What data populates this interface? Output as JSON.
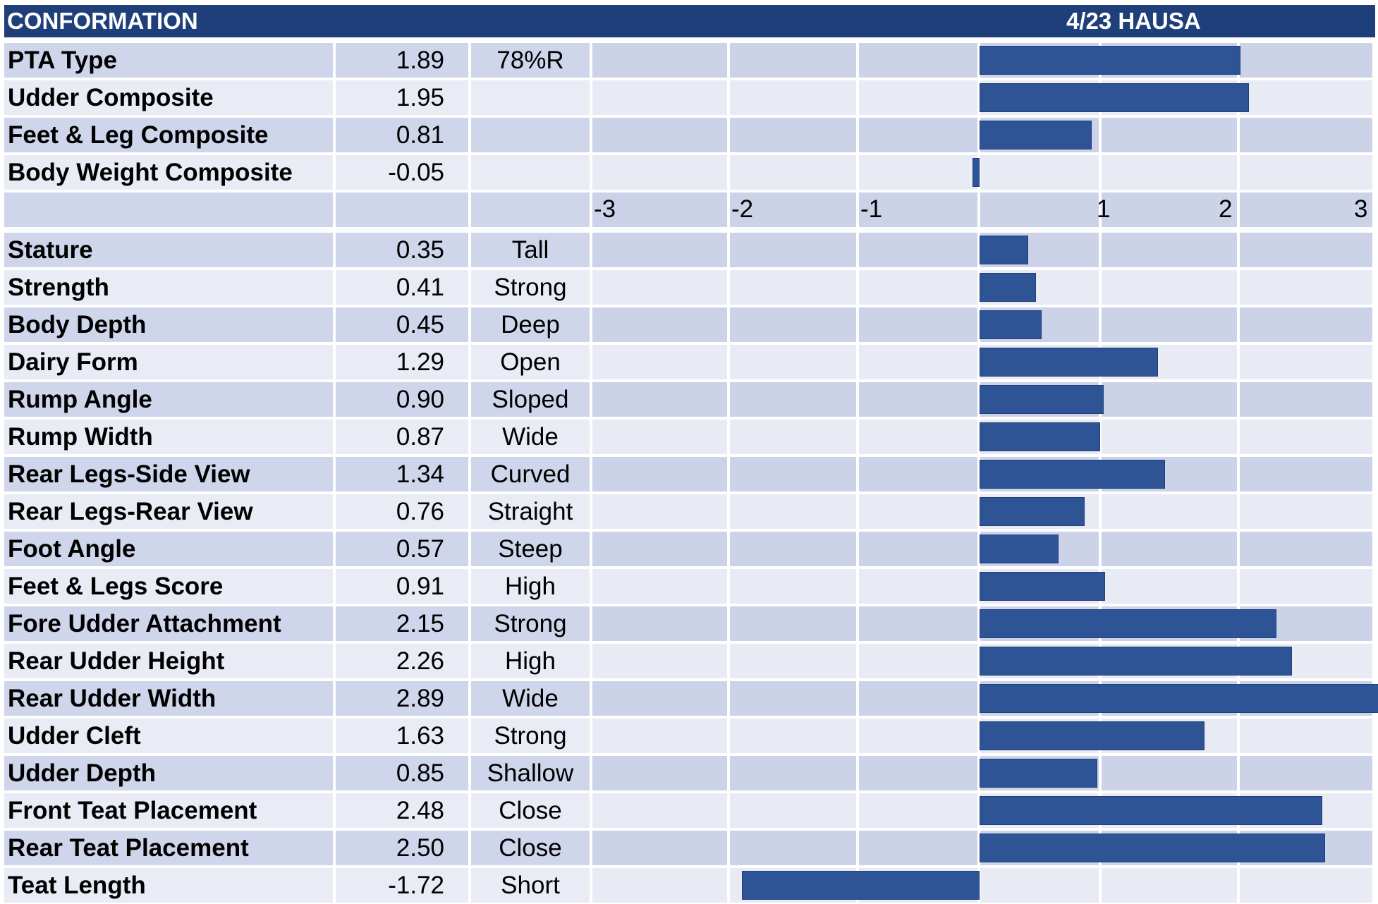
{
  "header": {
    "title": "CONFORMATION",
    "subtitle": "4/23 HAUSA"
  },
  "colors": {
    "header_bg": "#1f3f7a",
    "bar": "#2e5496",
    "row_dark": "#ccd3e8",
    "row_light": "#e8ebf4",
    "cell_light": "#e9ebf5",
    "cell_dark": "#cfd5ea"
  },
  "chart_data": {
    "type": "bar",
    "orientation": "horizontal",
    "xlim": [
      -3,
      3
    ],
    "x_ticks": [
      "-3",
      "-2",
      "-1",
      "1",
      "2",
      "3"
    ],
    "composites": [
      {
        "label": "PTA Type",
        "value": 1.89,
        "value_text": "1.89",
        "desc": "78%R"
      },
      {
        "label": "Udder Composite",
        "value": 1.95,
        "value_text": "1.95",
        "desc": ""
      },
      {
        "label": "Feet & Leg Composite",
        "value": 0.81,
        "value_text": "0.81",
        "desc": ""
      },
      {
        "label": "Body Weight Composite",
        "value": -0.05,
        "value_text": "-0.05",
        "desc": ""
      }
    ],
    "traits": [
      {
        "label": "Stature",
        "value": 0.35,
        "value_text": "0.35",
        "desc": "Tall"
      },
      {
        "label": "Strength",
        "value": 0.41,
        "value_text": "0.41",
        "desc": "Strong"
      },
      {
        "label": "Body Depth",
        "value": 0.45,
        "value_text": "0.45",
        "desc": "Deep"
      },
      {
        "label": "Dairy Form",
        "value": 1.29,
        "value_text": "1.29",
        "desc": "Open"
      },
      {
        "label": "Rump Angle",
        "value": 0.9,
        "value_text": "0.90",
        "desc": "Sloped"
      },
      {
        "label": "Rump Width",
        "value": 0.87,
        "value_text": "0.87",
        "desc": "Wide"
      },
      {
        "label": "Rear Legs-Side View",
        "value": 1.34,
        "value_text": "1.34",
        "desc": "Curved"
      },
      {
        "label": "Rear Legs-Rear View",
        "value": 0.76,
        "value_text": "0.76",
        "desc": "Straight"
      },
      {
        "label": "Foot Angle",
        "value": 0.57,
        "value_text": "0.57",
        "desc": "Steep"
      },
      {
        "label": "Feet & Legs Score",
        "value": 0.91,
        "value_text": "0.91",
        "desc": "High"
      },
      {
        "label": "Fore Udder Attachment",
        "value": 2.15,
        "value_text": "2.15",
        "desc": "Strong"
      },
      {
        "label": "Rear Udder Height",
        "value": 2.26,
        "value_text": "2.26",
        "desc": "High"
      },
      {
        "label": "Rear Udder Width",
        "value": 2.89,
        "value_text": "2.89",
        "desc": "Wide"
      },
      {
        "label": "Udder Cleft",
        "value": 1.63,
        "value_text": "1.63",
        "desc": "Strong"
      },
      {
        "label": "Udder Depth",
        "value": 0.85,
        "value_text": "0.85",
        "desc": "Shallow"
      },
      {
        "label": "Front Teat Placement",
        "value": 2.48,
        "value_text": "2.48",
        "desc": "Close"
      },
      {
        "label": "Rear Teat Placement",
        "value": 2.5,
        "value_text": "2.50",
        "desc": "Close"
      },
      {
        "label": "Teat Length",
        "value": -1.72,
        "value_text": "-1.72",
        "desc": "Short"
      }
    ]
  }
}
